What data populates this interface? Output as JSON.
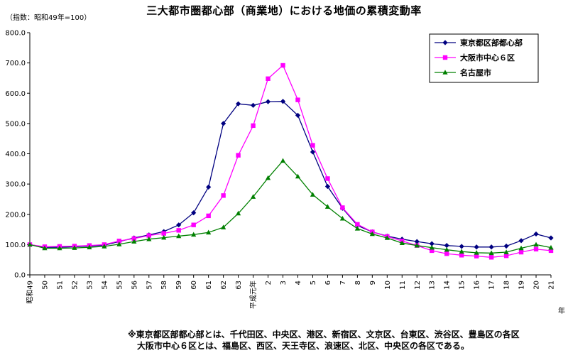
{
  "chart_data": {
    "type": "line",
    "title": "三大都市圏都心部（商業地）における地価の累積変動率",
    "subtitle": "（指数：昭和49年=100）",
    "xlabel": "年",
    "ylabel": "",
    "ylim": [
      0,
      800
    ],
    "yticks": [
      "0.0",
      "100.0",
      "200.0",
      "300.0",
      "400.0",
      "500.0",
      "600.0",
      "700.0",
      "800.0"
    ],
    "categories": [
      "昭和49",
      "50",
      "51",
      "52",
      "53",
      "54",
      "55",
      "56",
      "57",
      "58",
      "59",
      "60",
      "61",
      "62",
      "63",
      "平成元年",
      "2",
      "3",
      "4",
      "5",
      "6",
      "7",
      "8",
      "9",
      "10",
      "11",
      "12",
      "13",
      "14",
      "15",
      "16",
      "17",
      "18",
      "19",
      "20",
      "21"
    ],
    "grid": false,
    "legend_position": "top-right",
    "series": [
      {
        "name": "東京都区部都心部",
        "color": "#000080",
        "marker": "diamond",
        "values": [
          100,
          91,
          91,
          93,
          95,
          98,
          110,
          122,
          132,
          143,
          165,
          205,
          290,
          500,
          565,
          560,
          572,
          573,
          527,
          406,
          292,
          220,
          163,
          142,
          128,
          118,
          110,
          103,
          97,
          94,
          92,
          92,
          95,
          113,
          135,
          122
        ]
      },
      {
        "name": "大阪市中心６区",
        "color": "#ff00ff",
        "marker": "square",
        "values": [
          100,
          93,
          94,
          95,
          97,
          100,
          112,
          120,
          130,
          137,
          147,
          165,
          195,
          262,
          395,
          493,
          648,
          692,
          578,
          428,
          318,
          222,
          167,
          142,
          127,
          112,
          97,
          80,
          70,
          65,
          62,
          58,
          63,
          75,
          85,
          80
        ]
      },
      {
        "name": "名古屋市",
        "color": "#008000",
        "marker": "triangle",
        "values": [
          100,
          88,
          88,
          89,
          91,
          94,
          101,
          110,
          118,
          123,
          128,
          133,
          140,
          157,
          203,
          258,
          320,
          377,
          325,
          265,
          225,
          186,
          153,
          135,
          122,
          105,
          97,
          90,
          83,
          77,
          73,
          72,
          75,
          88,
          100,
          90
        ]
      }
    ]
  },
  "footnote": {
    "line1": "※東京都区部都心部とは、千代田区、中央区、港区、新宿区、文京区、台東区、渋谷区、豊島区の各区",
    "line2": "大阪市中心６区とは、福島区、西区、天王寺区、浪速区、北区、中央区の各区である。"
  }
}
